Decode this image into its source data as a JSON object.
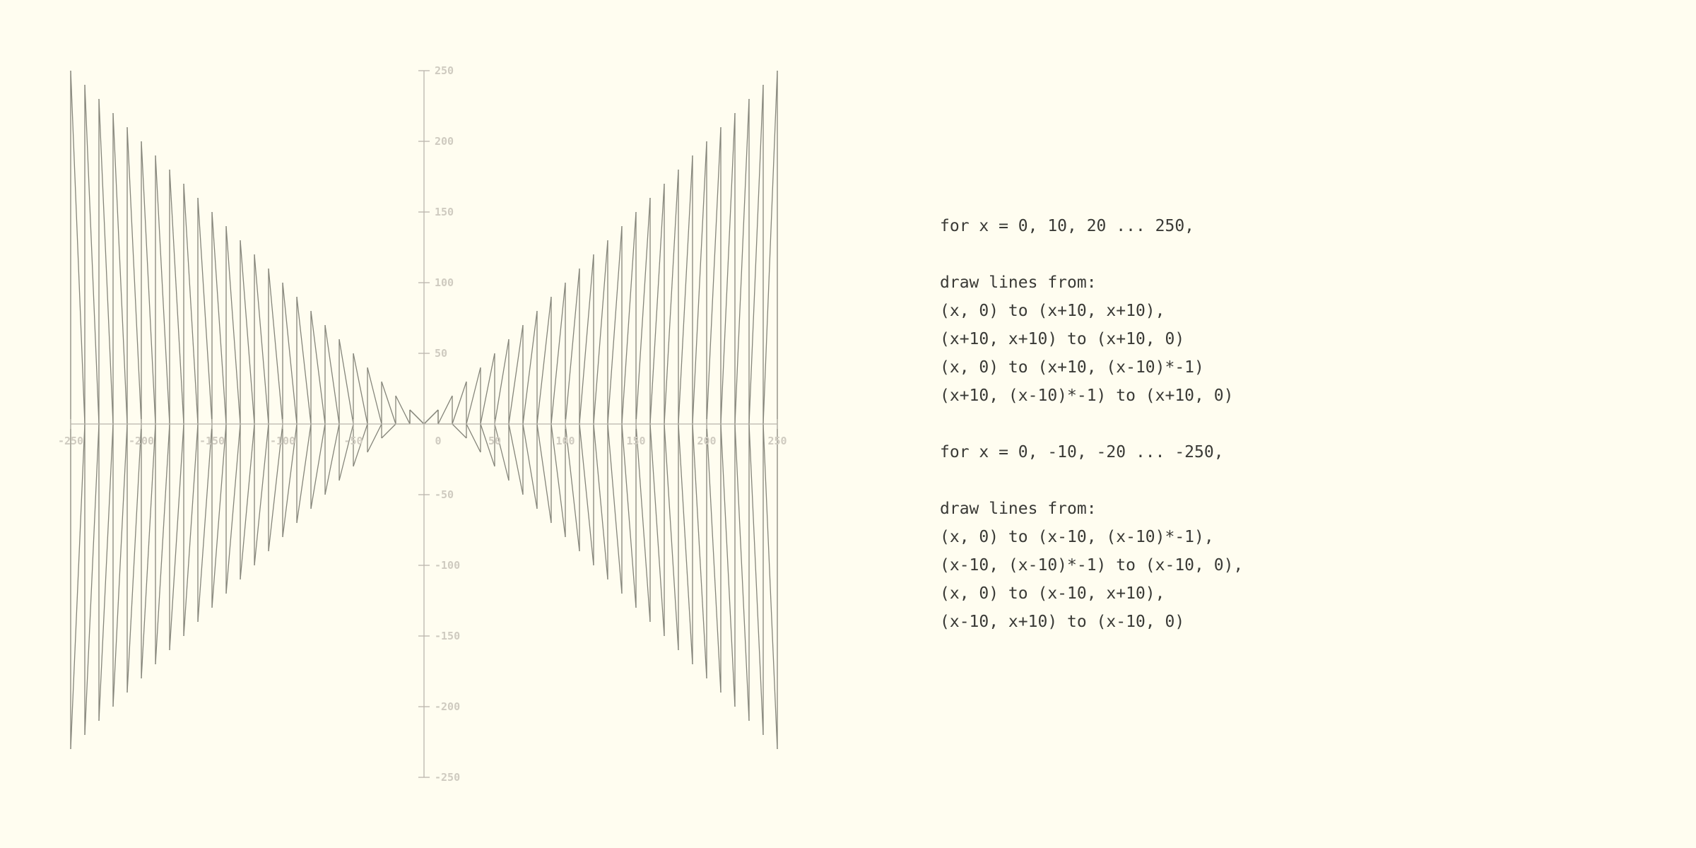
{
  "diagram": {
    "x_range": [
      -250,
      250
    ],
    "y_range": [
      -250,
      250
    ],
    "x_ticks": [
      -250,
      -200,
      -150,
      -100,
      -50,
      0,
      50,
      100,
      150,
      200,
      250
    ],
    "y_ticks": [
      -250,
      -200,
      -150,
      -100,
      -50,
      50,
      100,
      150,
      200,
      250
    ],
    "step": 10,
    "colors": {
      "background": "#fffdf0",
      "lines": "#85857a",
      "axis": "#b9b6ac",
      "tick_labels": "#cfcbc0",
      "text": "#3a3a36"
    }
  },
  "description": {
    "blocks": [
      {
        "header": "for x = 0, 10, 20 ... 250,"
      },
      {
        "header": "draw lines from:",
        "lines": [
          "(x, 0) to (x+10, x+10),",
          "(x+10, x+10) to (x+10, 0)",
          "(x, 0) to (x+10, (x-10)*-1)",
          "(x+10, (x-10)*-1) to (x+10, 0)"
        ]
      },
      {
        "header": "for x = 0, -10, -20 ... -250,"
      },
      {
        "header": "draw lines from:",
        "lines": [
          "(x, 0) to (x-10, (x-10)*-1),",
          "(x-10, (x-10)*-1) to (x-10, 0),",
          "(x, 0) to (x-10, x+10),",
          "(x-10, x+10) to (x-10, 0)"
        ]
      }
    ]
  }
}
